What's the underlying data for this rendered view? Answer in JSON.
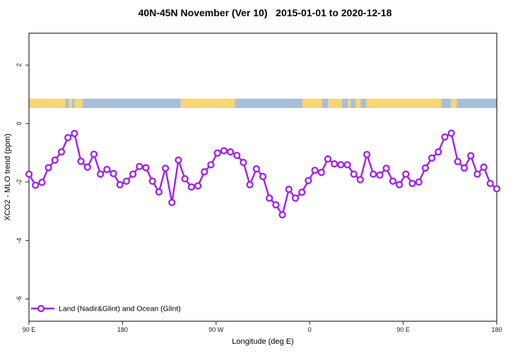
{
  "title": "40N-45N November (Ver 10)   2015-01-01 to 2020-12-18",
  "chart_data": {
    "type": "line",
    "title": "40N-45N November (Ver 10)   2015-01-01 to 2020-12-18",
    "xlabel": "Longitude (deg E)",
    "ylabel": "XCO2 - MLO trend (ppm)",
    "grid": false,
    "x_axis": {
      "range": [
        90,
        540
      ],
      "ticks": [
        90,
        180,
        270,
        360,
        450,
        540
      ],
      "tick_labels": [
        "90 E",
        "180",
        "90 W",
        "0",
        "90 E",
        "180"
      ]
    },
    "y_axis": {
      "range": [
        -6.76,
        3.09
      ],
      "ticks": [
        2,
        0,
        -2,
        -4,
        -6
      ],
      "tick_labels": [
        "2",
        "0",
        "-2",
        "-4",
        "-6"
      ]
    },
    "legend": {
      "position": "bottom-left",
      "entries": [
        {
          "label": "Land (Nadir&Glint) and Ocean (Glint)",
          "color": "#A020F0",
          "marker": "open-circle"
        }
      ]
    },
    "series": [
      {
        "name": "Land (Nadir&Glint) and Ocean (Glint)",
        "color": "#A020F0",
        "marker": "open-circle",
        "x_start": 90,
        "x_step": 6.25,
        "values": [
          -1.73,
          -2.11,
          -2.01,
          -1.51,
          -1.25,
          -0.97,
          -0.48,
          -0.34,
          -1.29,
          -1.49,
          -1.05,
          -1.73,
          -1.57,
          -1.71,
          -2.09,
          -1.97,
          -1.73,
          -1.47,
          -1.51,
          -1.97,
          -2.34,
          -1.53,
          -2.7,
          -1.25,
          -1.89,
          -2.17,
          -2.13,
          -1.65,
          -1.41,
          -1.01,
          -0.93,
          -0.97,
          -1.09,
          -1.33,
          -2.09,
          -1.55,
          -1.81,
          -2.55,
          -2.78,
          -3.12,
          -2.25,
          -2.55,
          -2.35,
          -1.95,
          -1.6,
          -1.67,
          -1.21,
          -1.38,
          -1.41,
          -1.41,
          -1.73,
          -1.92,
          -1.06,
          -1.73,
          -1.76,
          -1.53,
          -1.97,
          -2.09,
          -1.73,
          -2.05,
          -2.0,
          -1.52,
          -1.18,
          -0.97,
          -0.46,
          -0.33,
          -1.3,
          -1.52,
          -1.1,
          -1.73,
          -1.49,
          -2.05,
          -2.23
        ]
      }
    ],
    "map_band": {
      "y_from": 0.53,
      "y_to": 0.85,
      "land_color": "#FBD56F",
      "ocean_color": "#A8BEDB",
      "segments": [
        {
          "from": 90,
          "to": 125,
          "type": "land"
        },
        {
          "from": 125,
          "to": 128.5,
          "type": "ocean"
        },
        {
          "from": 128.5,
          "to": 131.5,
          "type": "land"
        },
        {
          "from": 131.5,
          "to": 134,
          "type": "ocean"
        },
        {
          "from": 134,
          "to": 141.5,
          "type": "land"
        },
        {
          "from": 141.5,
          "to": 236,
          "type": "ocean"
        },
        {
          "from": 236,
          "to": 288,
          "type": "land"
        },
        {
          "from": 288,
          "to": 353,
          "type": "ocean"
        },
        {
          "from": 353,
          "to": 372,
          "type": "land"
        },
        {
          "from": 372,
          "to": 378,
          "type": "ocean"
        },
        {
          "from": 378,
          "to": 391,
          "type": "land"
        },
        {
          "from": 391,
          "to": 397,
          "type": "ocean"
        },
        {
          "from": 397,
          "to": 399.5,
          "type": "land"
        },
        {
          "from": 399.5,
          "to": 404,
          "type": "ocean"
        },
        {
          "from": 404,
          "to": 409,
          "type": "land"
        },
        {
          "from": 409,
          "to": 414.5,
          "type": "ocean"
        },
        {
          "from": 414.5,
          "to": 487,
          "type": "land"
        },
        {
          "from": 487,
          "to": 496,
          "type": "ocean"
        },
        {
          "from": 496,
          "to": 501.5,
          "type": "land"
        },
        {
          "from": 501.5,
          "to": 540,
          "type": "ocean"
        }
      ]
    }
  }
}
